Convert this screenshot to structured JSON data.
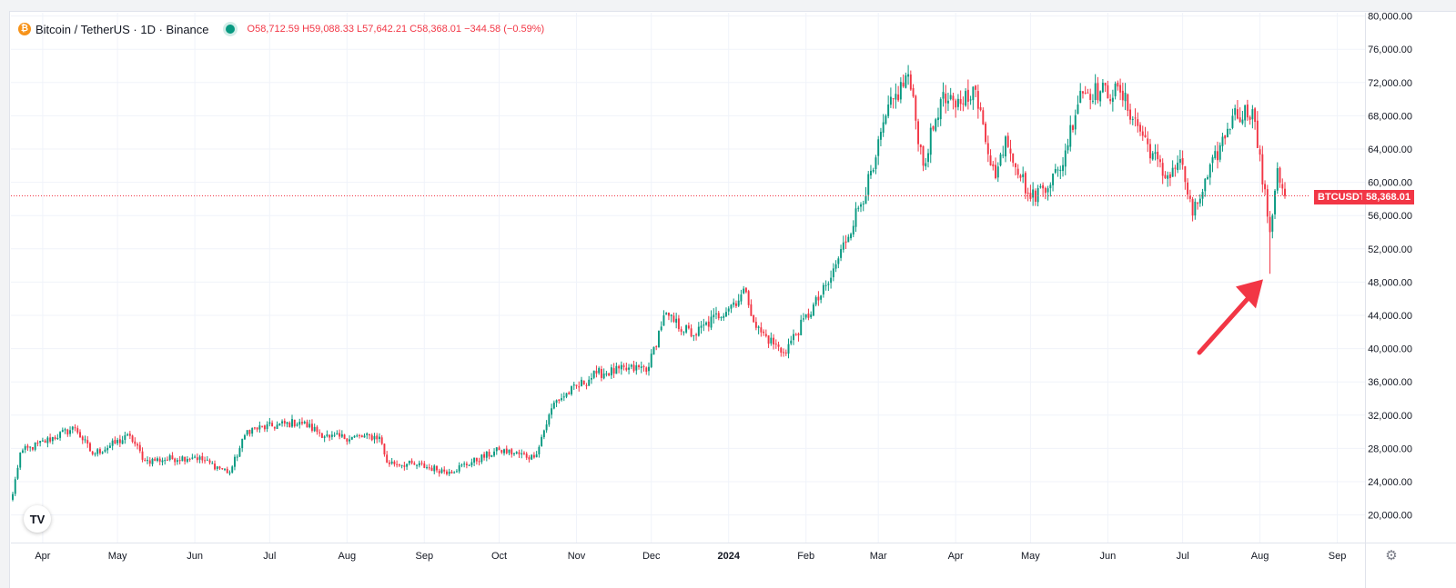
{
  "header": {
    "symbol_title": "Bitcoin / TetherUS · 1D · Binance",
    "open": "O58,712.59",
    "high": "H59,088.33",
    "low": "L57,642.21",
    "close": "C58,368.01",
    "change": "−344.58 (−0.59%)"
  },
  "badges": {
    "symbol_label": "BTCUSDT",
    "last_price": "58,368.01"
  },
  "logo_text": "TV",
  "colors": {
    "up": "#089981",
    "down": "#f23645",
    "arrow": "#f23645",
    "grid": "#f0f3fa"
  },
  "chart_data": {
    "type": "candlestick",
    "y_ticks": [
      "20,000.00",
      "24,000.00",
      "28,000.00",
      "32,000.00",
      "36,000.00",
      "40,000.00",
      "44,000.00",
      "48,000.00",
      "52,000.00",
      "56,000.00",
      "60,000.00",
      "64,000.00",
      "68,000.00",
      "72,000.00",
      "76,000.00",
      "80,000.00"
    ],
    "x_ticks": [
      "Apr",
      "May",
      "Jun",
      "Jul",
      "Aug",
      "Sep",
      "Oct",
      "Nov",
      "Dec",
      "2024",
      "Feb",
      "Mar",
      "Apr",
      "May",
      "Jun",
      "Jul",
      "Aug",
      "Sep"
    ],
    "ylim": [
      17000,
      80000
    ],
    "last_price": 58368.01,
    "series_close_anchors": [
      [
        "2023-03-20",
        22500
      ],
      [
        "2023-03-23",
        27500
      ],
      [
        "2023-04-14",
        30500
      ],
      [
        "2023-04-21",
        27300
      ],
      [
        "2023-05-06",
        29500
      ],
      [
        "2023-05-12",
        26500
      ],
      [
        "2023-06-01",
        27000
      ],
      [
        "2023-06-15",
        25100
      ],
      [
        "2023-06-22",
        30200
      ],
      [
        "2023-07-13",
        31200
      ],
      [
        "2023-07-25",
        29300
      ],
      [
        "2023-08-14",
        29400
      ],
      [
        "2023-08-17",
        26300
      ],
      [
        "2023-08-29",
        26000
      ],
      [
        "2023-09-11",
        25200
      ],
      [
        "2023-10-01",
        27800
      ],
      [
        "2023-10-15",
        26900
      ],
      [
        "2023-10-23",
        33500
      ],
      [
        "2023-11-09",
        37000
      ],
      [
        "2023-11-30",
        37800
      ],
      [
        "2023-12-06",
        44000
      ],
      [
        "2023-12-18",
        41600
      ],
      [
        "2024-01-08",
        46800
      ],
      [
        "2024-01-12",
        42500
      ],
      [
        "2024-01-23",
        39500
      ],
      [
        "2024-02-10",
        47800
      ],
      [
        "2024-02-28",
        61500
      ],
      [
        "2024-03-04",
        68000
      ],
      [
        "2024-03-13",
        73000
      ],
      [
        "2024-03-19",
        62000
      ],
      [
        "2024-03-26",
        70000
      ],
      [
        "2024-04-01",
        69000
      ],
      [
        "2024-04-08",
        71500
      ],
      [
        "2024-04-17",
        60500
      ],
      [
        "2024-04-21",
        65500
      ],
      [
        "2024-05-01",
        58000
      ],
      [
        "2024-05-13",
        61500
      ],
      [
        "2024-05-21",
        71000
      ],
      [
        "2024-06-06",
        70800
      ],
      [
        "2024-06-24",
        60500
      ],
      [
        "2024-06-30",
        62800
      ],
      [
        "2024-07-05",
        56000
      ],
      [
        "2024-07-21",
        68000
      ],
      [
        "2024-07-29",
        68800
      ],
      [
        "2024-08-05",
        54000
      ],
      [
        "2024-08-08",
        61700
      ],
      [
        "2024-08-11",
        58368
      ]
    ],
    "annotations": [
      "red arrow pointing to the 2024-08-05 low wick (~49,000)"
    ]
  }
}
